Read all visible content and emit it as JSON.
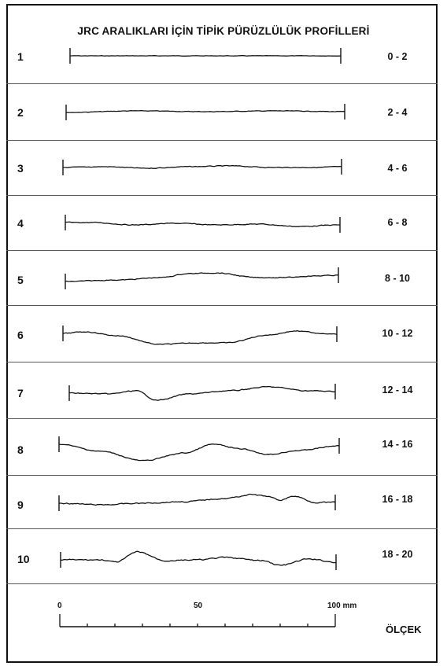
{
  "title": "JRC ARALIKLARI İÇİN TİPİK PÜRÜZLÜLÜK PROFİLLERİ",
  "rows": [
    {
      "number": "1",
      "range": "0 - 2"
    },
    {
      "number": "2",
      "range": "2 - 4"
    },
    {
      "number": "3",
      "range": "4 - 6"
    },
    {
      "number": "4",
      "range": "6 - 8"
    },
    {
      "number": "5",
      "range": "8 - 10"
    },
    {
      "number": "6",
      "range": "10 - 12"
    },
    {
      "number": "7",
      "range": "12 - 14"
    },
    {
      "number": "8",
      "range": "14 - 16"
    },
    {
      "number": "9",
      "range": "16 - 18"
    },
    {
      "number": "10",
      "range": "18 - 20"
    }
  ],
  "scale": {
    "tick_labels": [
      "0",
      "50",
      "100 mm"
    ],
    "caption": "ÖLÇEK"
  },
  "colors": {
    "ink": "#111111",
    "divider": "#555555",
    "background": "#ffffff"
  }
}
